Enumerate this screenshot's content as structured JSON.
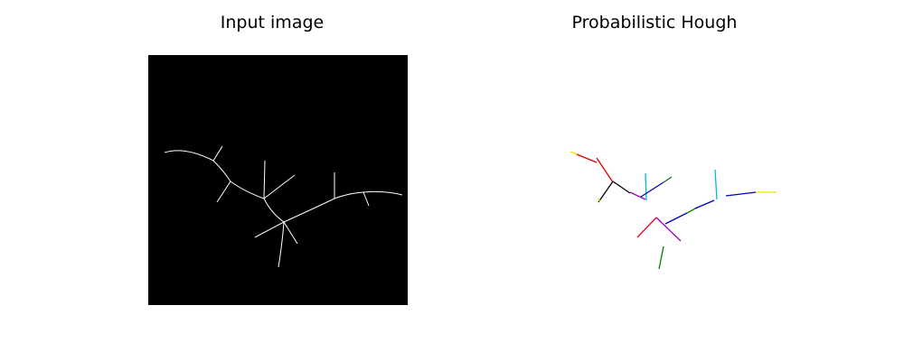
{
  "figure": {
    "left_title": "Input image",
    "right_title": "Probabilistic Hough"
  },
  "colors": {
    "input_background": "#000000",
    "skeleton": "#ffffff",
    "page_background": "#ffffff"
  },
  "segment_colors": [
    "#e6e600",
    "#e00000",
    "#000000",
    "#00c0c0",
    "#a000c0",
    "#0000c0",
    "#008000",
    "#e0002a",
    "#00bcd4"
  ]
}
